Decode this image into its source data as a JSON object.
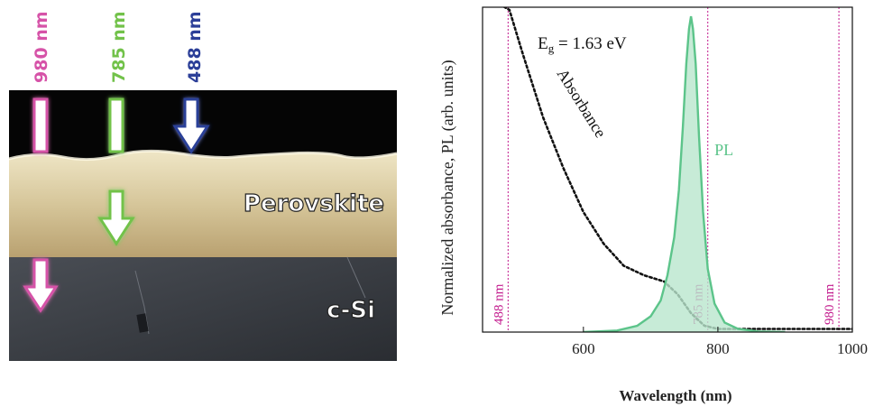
{
  "sem_image": {
    "layers": [
      {
        "label": "Perovskite",
        "color": "#d8c9a0"
      },
      {
        "label": "c-Si",
        "color": "#3a3d42"
      }
    ],
    "beams": [
      {
        "label": "980 nm",
        "color": "#d653a8",
        "arrow_stops_in": "c-Si"
      },
      {
        "label": "785 nm",
        "color": "#72c24a",
        "arrow_stops_in": "Perovskite"
      },
      {
        "label": "488 nm",
        "color": "#2c3f98",
        "arrow_stops_in": "surface"
      }
    ]
  },
  "chart_data": {
    "type": "line",
    "title": "",
    "xlabel": "Wavelength (nm)",
    "ylabel": "Normalized absorbance, PL (arb. units)",
    "xlim": [
      450,
      1000
    ],
    "ylim": [
      0,
      1
    ],
    "xticks": [
      600,
      800,
      1000
    ],
    "grid": false,
    "annotation": {
      "prefix": "E",
      "subscript": "g",
      "suffix": " = 1.63 eV"
    },
    "vlines": [
      {
        "x": 488,
        "label": "488 nm",
        "color": "#c2188c"
      },
      {
        "x": 785,
        "label": "785 nm",
        "color": "#c2188c"
      },
      {
        "x": 980,
        "label": "980 nm",
        "color": "#c2188c"
      }
    ],
    "series": [
      {
        "name": "Absorbance",
        "color": "#111111",
        "style": "dotted",
        "x": [
          450,
          490,
          510,
          540,
          570,
          600,
          630,
          660,
          690,
          720,
          740,
          760,
          780,
          800,
          850,
          900,
          1000
        ],
        "y": [
          1.07,
          1.02,
          0.88,
          0.68,
          0.52,
          0.38,
          0.28,
          0.21,
          0.18,
          0.16,
          0.12,
          0.06,
          0.02,
          0.01,
          0.01,
          0.01,
          0.01
        ]
      },
      {
        "name": "PL",
        "color": "#5cc48a",
        "style": "solid-filled",
        "fill": "#b9e6cd",
        "x": [
          600,
          650,
          680,
          700,
          715,
          725,
          735,
          742,
          748,
          753,
          757,
          760,
          763,
          767,
          772,
          778,
          785,
          795,
          810,
          830,
          860,
          900
        ],
        "y": [
          0.0,
          0.005,
          0.02,
          0.05,
          0.1,
          0.18,
          0.3,
          0.45,
          0.65,
          0.85,
          0.96,
          1.0,
          0.96,
          0.85,
          0.62,
          0.38,
          0.2,
          0.09,
          0.03,
          0.01,
          0.002,
          0.0
        ]
      }
    ]
  }
}
